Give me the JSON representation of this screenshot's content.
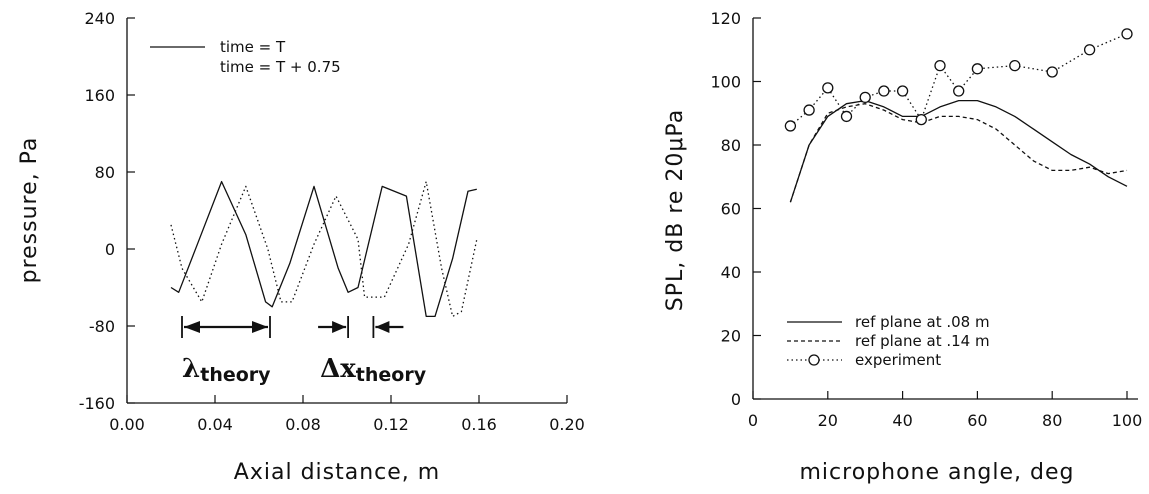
{
  "chart_data": [
    {
      "type": "line",
      "xlabel": "Axial distance, m",
      "ylabel": "pressure, Pa",
      "xlim": [
        0,
        0.2
      ],
      "ylim": [
        -160,
        240
      ],
      "xticks": [
        "0.00",
        "0.04",
        "0.08",
        "0.12",
        "0.16",
        "0.20"
      ],
      "yticks": [
        "240",
        "160",
        "80",
        "0",
        "-80",
        "-160"
      ],
      "grid": false,
      "legend_position": "top-left",
      "series": [
        {
          "name": "time = T",
          "style": "solid",
          "x": [
            0.02,
            0.0235,
            0.032,
            0.043,
            0.054,
            0.063,
            0.066,
            0.074,
            0.085,
            0.096,
            0.1005,
            0.105,
            0.116,
            0.127,
            0.136,
            0.14,
            0.148,
            0.155,
            0.159
          ],
          "y": [
            -40,
            -45,
            5,
            70,
            15,
            -55,
            -60,
            -15,
            65,
            -20,
            -45,
            -40,
            65,
            55,
            -70,
            -70,
            -10,
            60,
            62
          ]
        },
        {
          "name": "time = T + 0.75",
          "style": "dotted",
          "x": [
            0.02,
            0.025,
            0.034,
            0.043,
            0.054,
            0.064,
            0.07,
            0.075,
            0.085,
            0.095,
            0.105,
            0.108,
            0.117,
            0.128,
            0.136,
            0.143,
            0.148,
            0.152,
            0.159
          ],
          "y": [
            25,
            -20,
            -55,
            5,
            65,
            0,
            -55,
            -55,
            5,
            55,
            10,
            -50,
            -50,
            5,
            70,
            -20,
            -70,
            -65,
            10
          ]
        }
      ],
      "annotations": [
        {
          "symbol": "λ",
          "subscript": "theory",
          "span": [
            0.025,
            0.065
          ]
        },
        {
          "symbol": "Δx",
          "subscript": "theory",
          "span": [
            0.1005,
            0.112
          ]
        }
      ]
    },
    {
      "type": "line",
      "xlabel": "microphone angle, deg",
      "ylabel": "SPL, dB re 20μPa",
      "xlim": [
        0,
        105
      ],
      "ylim": [
        0,
        120
      ],
      "xticks": [
        "0",
        "20",
        "40",
        "60",
        "80",
        "100"
      ],
      "yticks": [
        "0",
        "20",
        "40",
        "60",
        "80",
        "100",
        "120"
      ],
      "grid": false,
      "legend_position": "bottom-left",
      "series": [
        {
          "name": "ref plane at .08 m",
          "style": "solid",
          "x": [
            10,
            15,
            20,
            25,
            30,
            35,
            40,
            45,
            50,
            55,
            60,
            65,
            70,
            75,
            80,
            85,
            90,
            95,
            100
          ],
          "y": [
            62,
            80,
            89,
            93,
            94,
            92,
            89,
            89,
            92,
            94,
            94,
            92,
            89,
            85,
            81,
            77,
            74,
            70,
            67
          ]
        },
        {
          "name": "ref plane at .14 m",
          "style": "dashed",
          "x": [
            10,
            15,
            20,
            25,
            30,
            35,
            40,
            45,
            50,
            55,
            60,
            65,
            70,
            75,
            80,
            85,
            90,
            95,
            100
          ],
          "y": [
            62,
            80,
            90,
            92,
            93,
            91,
            88,
            87,
            89,
            89,
            88,
            85,
            80,
            75,
            72,
            72,
            73,
            71,
            72
          ]
        },
        {
          "name": "experiment",
          "style": "dotted-circles",
          "x": [
            10,
            15,
            20,
            25,
            30,
            35,
            40,
            45,
            50,
            55,
            60,
            70,
            80,
            90,
            100
          ],
          "y": [
            86,
            91,
            98,
            89,
            95,
            97,
            97,
            88,
            105,
            97,
            104,
            105,
            103,
            110,
            115
          ]
        }
      ]
    }
  ]
}
